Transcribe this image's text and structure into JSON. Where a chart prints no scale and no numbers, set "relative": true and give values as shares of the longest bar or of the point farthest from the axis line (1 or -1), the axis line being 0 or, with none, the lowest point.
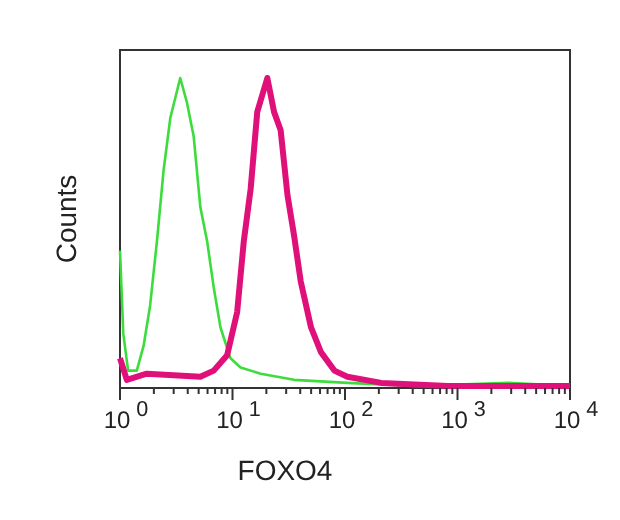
{
  "chart_data": {
    "type": "line",
    "xlabel": "FOXO4",
    "ylabel": "Counts",
    "relative": true,
    "log": "x",
    "xlim": [
      1,
      10000
    ],
    "xticks": [
      {
        "value": 1,
        "label": "10$^{0}$"
      },
      {
        "value": 2,
        "label": null
      },
      {
        "value": 3,
        "label": null
      },
      {
        "value": 4,
        "label": null
      },
      {
        "value": 5,
        "label": null
      },
      {
        "value": 6,
        "label": null
      },
      {
        "value": 7,
        "label": null
      },
      {
        "value": 8,
        "label": null
      },
      {
        "value": 9,
        "label": null
      },
      {
        "value": 10,
        "label": "10$^{1}$"
      },
      {
        "value": 20,
        "label": null
      },
      {
        "value": 30,
        "label": null
      },
      {
        "value": 40,
        "label": null
      },
      {
        "value": 50,
        "label": null
      },
      {
        "value": 60,
        "label": null
      },
      {
        "value": 70,
        "label": null
      },
      {
        "value": 80,
        "label": null
      },
      {
        "value": 90,
        "label": null
      },
      {
        "value": 100,
        "label": "10$^{2}$"
      },
      {
        "value": 200,
        "label": null
      },
      {
        "value": 300,
        "label": null
      },
      {
        "value": 400,
        "label": null
      },
      {
        "value": 500,
        "label": null
      },
      {
        "value": 600,
        "label": null
      },
      {
        "value": 700,
        "label": null
      },
      {
        "value": 800,
        "label": null
      },
      {
        "value": 900,
        "label": null
      },
      {
        "value": 1000,
        "label": "10$^{3}$"
      },
      {
        "value": 2000,
        "label": null
      },
      {
        "value": 3000,
        "label": null
      },
      {
        "value": 4000,
        "label": null
      },
      {
        "value": 5000,
        "label": null
      },
      {
        "value": 6000,
        "label": null
      },
      {
        "value": 7000,
        "label": null
      },
      {
        "value": 8000,
        "label": null
      },
      {
        "value": 9000,
        "label": null
      },
      {
        "value": 10000,
        "label": "10$^{4}$"
      }
    ],
    "series": [
      {
        "color": "#3ddc3d",
        "x": [
          1,
          1.07,
          1.18,
          1.41,
          1.62,
          1.85,
          2.13,
          2.44,
          2.8,
          3.43,
          3.94,
          4.52,
          5.18,
          5.95,
          6.81,
          7.82,
          9.6,
          11.8,
          17.8,
          35.2,
          105,
          417,
          2840,
          10000
        ],
        "values": [
          0.44,
          0.17,
          0.05,
          0.05,
          0.13,
          0.26,
          0.47,
          0.7,
          0.87,
          1,
          0.92,
          0.81,
          0.58,
          0.47,
          0.32,
          0.19,
          0.09,
          0.06,
          0.04,
          0.02,
          0.01,
          0.0,
          0.01,
          0.0
        ]
      },
      {
        "color": "#e0107a",
        "x": [
          1,
          1.15,
          1.73,
          5.18,
          6.81,
          8.96,
          11,
          12.6,
          14.5,
          16.6,
          20.4,
          23.4,
          26.8,
          30.8,
          35.2,
          40.4,
          49.9,
          61.1,
          80.4,
          105,
          210,
          825,
          10000
        ],
        "values": [
          0.09,
          0.02,
          0.04,
          0.03,
          0.05,
          0.1,
          0.24,
          0.47,
          0.64,
          0.89,
          1,
          0.89,
          0.83,
          0.62,
          0.49,
          0.34,
          0.19,
          0.11,
          0.05,
          0.03,
          0.01,
          0.0,
          0.0
        ]
      }
    ]
  }
}
